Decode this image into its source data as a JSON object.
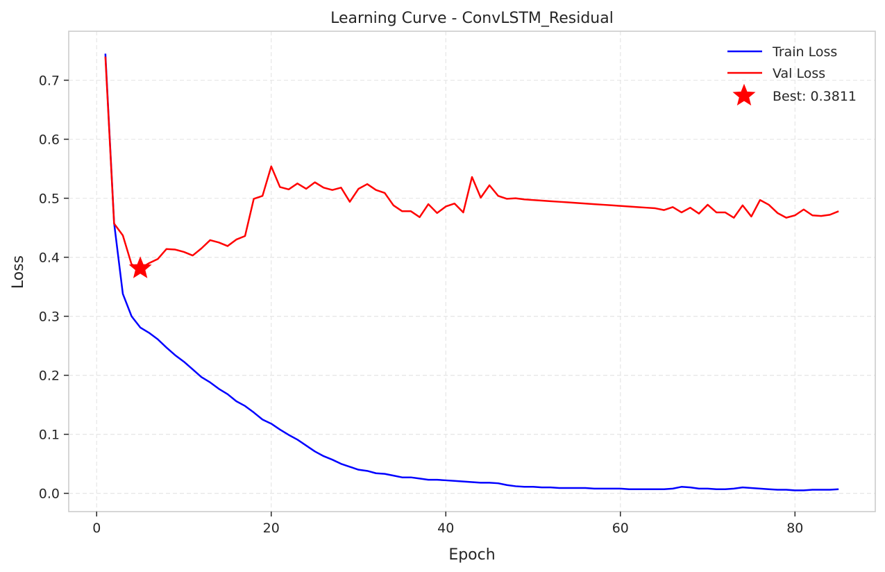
{
  "chart_data": {
    "type": "line",
    "title": "Learning Curve - ConvLSTM_Residual",
    "xlabel": "Epoch",
    "ylabel": "Loss",
    "xlim": [
      -3.2,
      89.2
    ],
    "ylim": [
      -0.031,
      0.783
    ],
    "xticks": [
      0,
      20,
      40,
      60,
      80
    ],
    "yticks": [
      0.0,
      0.1,
      0.2,
      0.3,
      0.4,
      0.5,
      0.6,
      0.7
    ],
    "xtick_labels": [
      "0",
      "20",
      "40",
      "60",
      "80"
    ],
    "ytick_labels": [
      "0.0",
      "0.1",
      "0.2",
      "0.3",
      "0.4",
      "0.5",
      "0.6",
      "0.7"
    ],
    "grid": true,
    "legend_position": "top-right",
    "x": [
      1,
      2,
      3,
      4,
      5,
      6,
      7,
      8,
      9,
      10,
      11,
      12,
      13,
      14,
      15,
      16,
      17,
      18,
      19,
      20,
      21,
      22,
      23,
      24,
      25,
      26,
      27,
      28,
      29,
      30,
      31,
      32,
      33,
      34,
      35,
      36,
      37,
      38,
      39,
      40,
      41,
      42,
      43,
      44,
      45,
      46,
      47,
      48,
      49,
      50,
      51,
      52,
      53,
      54,
      55,
      56,
      57,
      58,
      59,
      60,
      61,
      62,
      63,
      64,
      65,
      66,
      67,
      68,
      69,
      70,
      71,
      72,
      73,
      74,
      75,
      76,
      77,
      78,
      79,
      80,
      81,
      82,
      83,
      84,
      85
    ],
    "series": [
      {
        "name": "Train Loss",
        "color": "#0000ff",
        "values": [
          0.745,
          0.458,
          0.338,
          0.3,
          0.281,
          0.272,
          0.261,
          0.247,
          0.234,
          0.223,
          0.21,
          0.197,
          0.188,
          0.177,
          0.168,
          0.156,
          0.148,
          0.137,
          0.125,
          0.118,
          0.108,
          0.099,
          0.091,
          0.081,
          0.071,
          0.063,
          0.057,
          0.05,
          0.045,
          0.04,
          0.038,
          0.034,
          0.033,
          0.03,
          0.027,
          0.027,
          0.025,
          0.023,
          0.023,
          0.022,
          0.021,
          0.02,
          0.019,
          0.018,
          0.018,
          0.017,
          0.014,
          0.012,
          0.011,
          0.011,
          0.01,
          0.01,
          0.009,
          0.009,
          0.009,
          0.009,
          0.008,
          0.008,
          0.008,
          0.008,
          0.007,
          0.007,
          0.007,
          0.007,
          0.007,
          0.008,
          0.011,
          0.01,
          0.008,
          0.008,
          0.007,
          0.007,
          0.008,
          0.01,
          0.009,
          0.008,
          0.007,
          0.006,
          0.006,
          0.005,
          0.005,
          0.006,
          0.006,
          0.006,
          0.007
        ]
      },
      {
        "name": "Val Loss",
        "color": "#ff0000",
        "values": [
          0.74,
          0.457,
          0.437,
          0.388,
          0.381,
          0.39,
          0.397,
          0.414,
          0.413,
          0.409,
          0.403,
          0.415,
          0.429,
          0.425,
          0.419,
          0.43,
          0.436,
          0.499,
          0.504,
          0.554,
          0.519,
          0.515,
          0.525,
          0.516,
          0.527,
          0.518,
          0.514,
          0.518,
          0.494,
          0.516,
          0.524,
          0.514,
          0.509,
          0.488,
          0.478,
          0.478,
          0.468,
          0.49,
          0.475,
          0.486,
          0.491,
          0.476,
          0.536,
          0.501,
          0.522,
          0.504,
          0.499,
          0.5,
          0.498,
          0.497,
          0.496,
          0.495,
          0.494,
          0.493,
          0.492,
          0.491,
          0.49,
          0.489,
          0.488,
          0.487,
          0.486,
          0.485,
          0.484,
          0.483,
          0.48,
          0.485,
          0.476,
          0.484,
          0.474,
          0.489,
          0.476,
          0.476,
          0.467,
          0.488,
          0.469,
          0.497,
          0.489,
          0.475,
          0.467,
          0.471,
          0.481,
          0.471,
          0.47,
          0.472,
          0.478
        ]
      }
    ],
    "best_marker": {
      "label": "Best: 0.3811",
      "x": 5,
      "y": 0.3811,
      "color": "#ff0000",
      "shape": "star"
    }
  }
}
